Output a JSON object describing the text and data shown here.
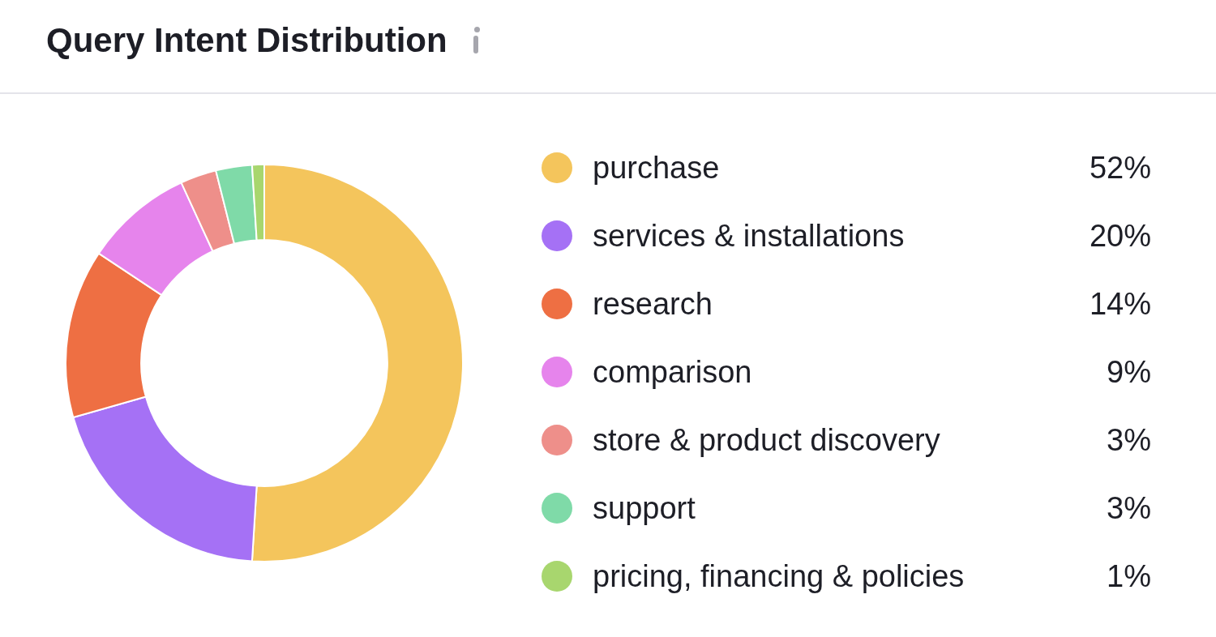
{
  "chart_data": {
    "type": "donut",
    "title": "Query Intent Distribution",
    "categories": [
      "purchase",
      "services & installations",
      "research",
      "comparison",
      "store & product discovery",
      "support",
      "pricing, financing & policies"
    ],
    "values": [
      52,
      20,
      14,
      9,
      3,
      3,
      1
    ],
    "value_labels": [
      "52%",
      "20%",
      "14%",
      "9%",
      "3%",
      "3%",
      "1%"
    ],
    "colors": [
      "#f4c55c",
      "#a571f5",
      "#ee6f43",
      "#e684ec",
      "#ee8f8a",
      "#7fdaa8",
      "#a8d66e"
    ],
    "legend": "right"
  }
}
